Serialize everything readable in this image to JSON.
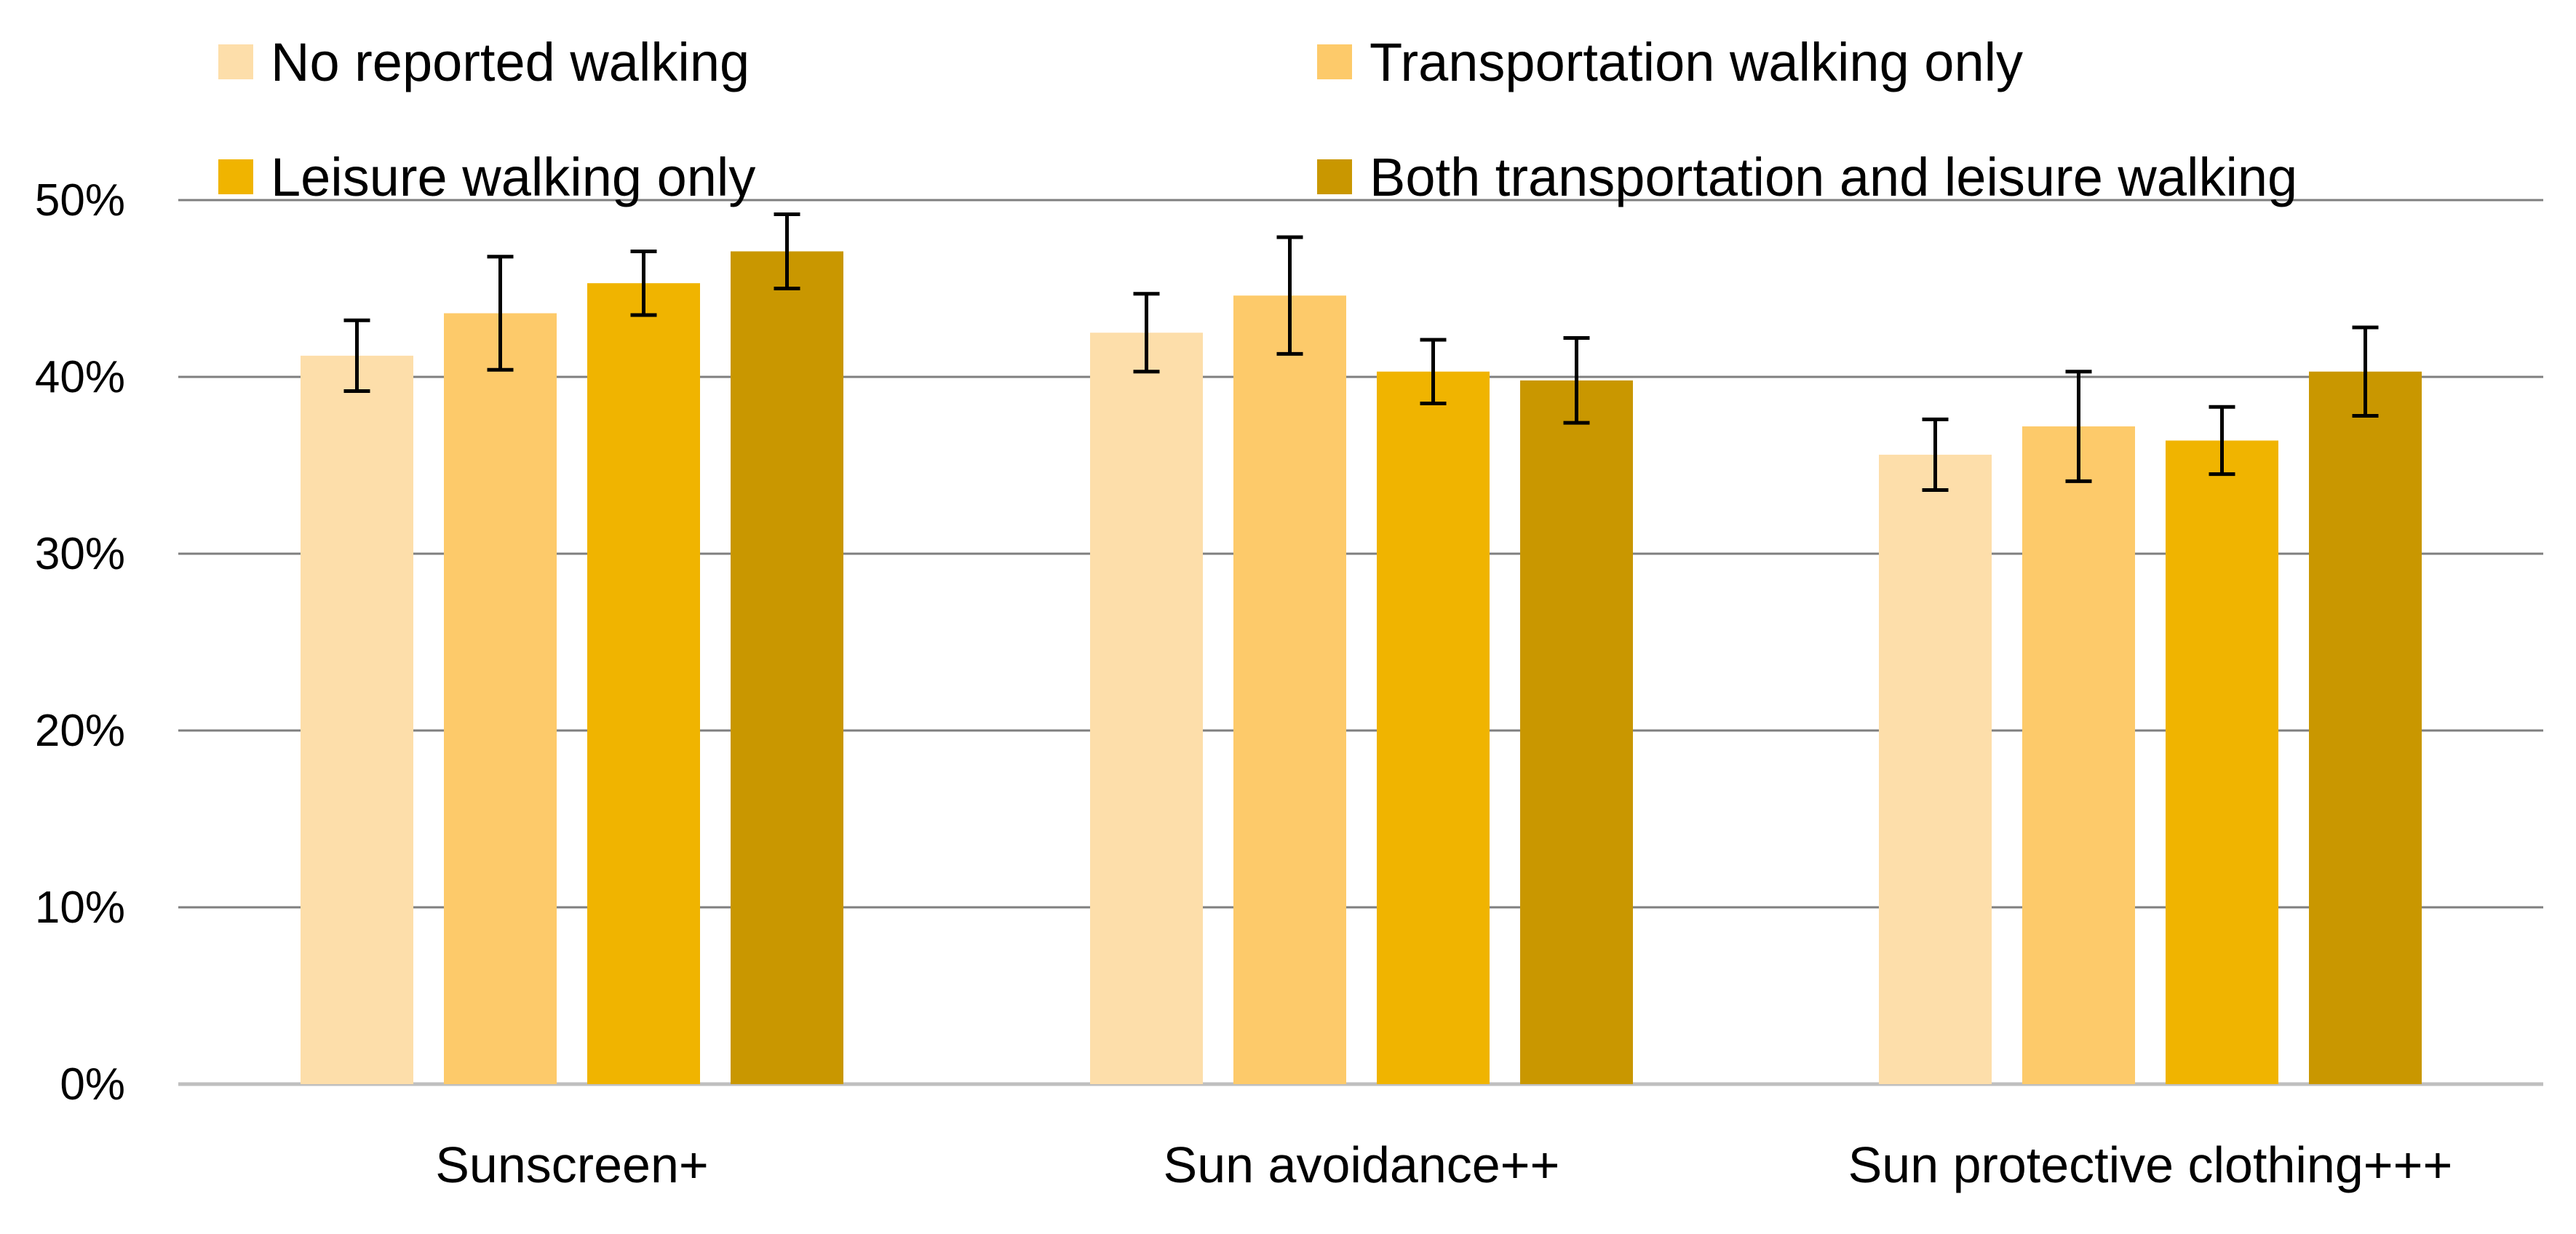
{
  "chart_data": {
    "type": "bar",
    "title": "",
    "xlabel": "",
    "ylabel": "",
    "ylim": [
      0,
      50
    ],
    "y_ticks": [
      0,
      10,
      20,
      30,
      40,
      50
    ],
    "y_tick_labels": [
      "0%",
      "10%",
      "20%",
      "30%",
      "40%",
      "50%"
    ],
    "grid": true,
    "legend_position": "top",
    "categories": [
      "Sunscreen+",
      "Sun avoidance++",
      "Sun protective clothing+++"
    ],
    "series": [
      {
        "name": "No reported walking",
        "color": "#FDDEAA",
        "values": [
          41.2,
          42.5,
          35.6
        ],
        "errors": [
          2.0,
          2.2,
          2.0
        ]
      },
      {
        "name": "Transportation walking only",
        "color": "#FDCA6A",
        "values": [
          43.6,
          44.6,
          37.2
        ],
        "errors": [
          3.2,
          3.3,
          3.1
        ]
      },
      {
        "name": "Leisure walking only",
        "color": "#F0B400",
        "values": [
          45.3,
          40.3,
          36.4
        ],
        "errors": [
          1.8,
          1.8,
          1.9
        ]
      },
      {
        "name": "Both transportation and leisure walking",
        "color": "#C99700",
        "values": [
          47.1,
          39.8,
          40.3
        ],
        "errors": [
          2.1,
          2.4,
          2.5
        ]
      }
    ]
  }
}
